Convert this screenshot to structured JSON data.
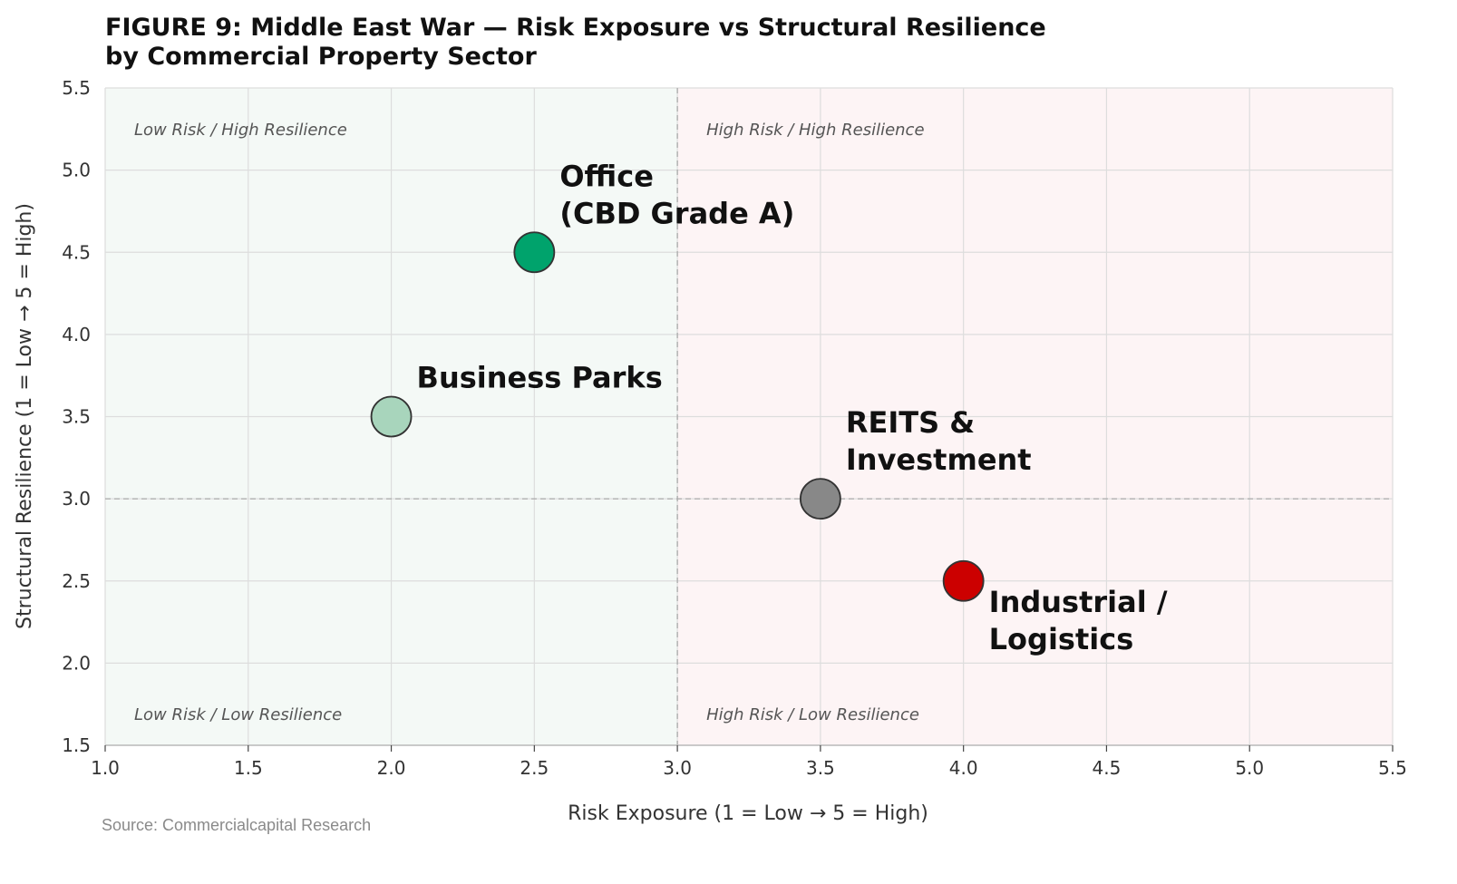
{
  "chart_data": {
    "type": "scatter",
    "title_lines": [
      "FIGURE 9: Middle East War — Risk Exposure vs Structural Resilience",
      "by Commercial Property Sector"
    ],
    "xlabel": "Risk Exposure  (1 = Low  →  5 = High)",
    "ylabel": "Structural Resilience  (1 = Low  →  5 = High)",
    "xlim": [
      1.0,
      5.5
    ],
    "ylim": [
      1.5,
      5.5
    ],
    "xticks": [
      "1.0",
      "1.5",
      "2.0",
      "2.5",
      "3.0",
      "3.5",
      "4.0",
      "4.5",
      "5.0",
      "5.5"
    ],
    "yticks": [
      "1.5",
      "2.0",
      "2.5",
      "3.0",
      "3.5",
      "4.0",
      "4.5",
      "5.0",
      "5.5"
    ],
    "grid": true,
    "divider_x": 3.0,
    "divider_y": 3.0,
    "quadrants": {
      "top_left": {
        "label": "Low Risk / High Resilience",
        "color": "#555555"
      },
      "top_right": {
        "label": "High Risk / High Resilience",
        "color": "#555555"
      },
      "bottom_left": {
        "label": "Low Risk / Low Resilience",
        "color": "#555555"
      },
      "bottom_right": {
        "label": "High Risk / Low Resilience",
        "color": "#c00000"
      }
    },
    "region_colors": {
      "low_risk": "#f4f9f6",
      "high_risk": "#fdf4f5"
    },
    "points": [
      {
        "label_lines": [
          "Office",
          "(CBD Grade A)"
        ],
        "x": 2.5,
        "y": 4.5,
        "color": "#00a36c",
        "label_side": "above-right"
      },
      {
        "label_lines": [
          "Business Parks"
        ],
        "x": 2.0,
        "y": 3.5,
        "color": "#a8d5bc",
        "label_side": "above-right"
      },
      {
        "label_lines": [
          "REITS &",
          "Investment"
        ],
        "x": 3.5,
        "y": 3.0,
        "color": "#888888",
        "label_side": "above-right"
      },
      {
        "label_lines": [
          "Industrial /",
          "Logistics"
        ],
        "x": 4.0,
        "y": 2.5,
        "color": "#cc0000",
        "label_side": "below-right"
      }
    ]
  },
  "source": "Source: Commercialcapital Research"
}
